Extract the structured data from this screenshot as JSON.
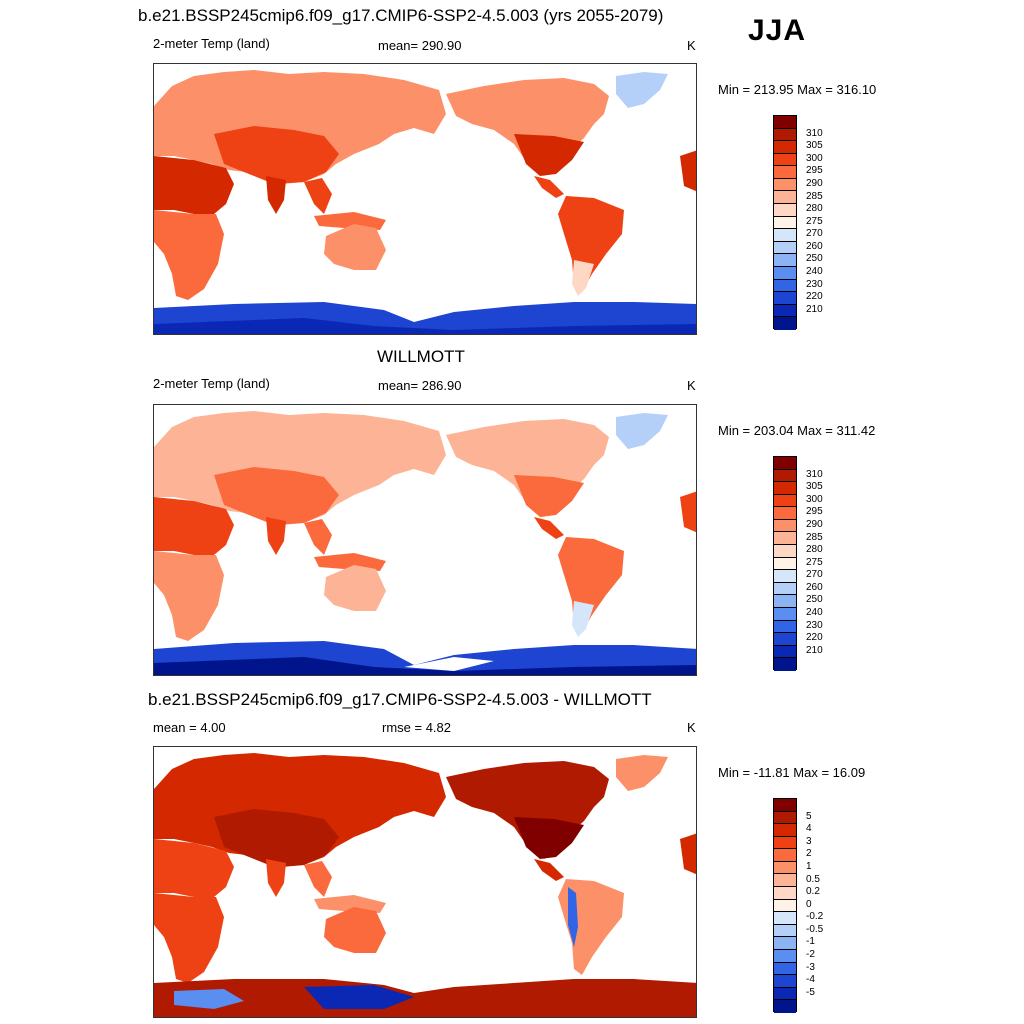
{
  "season": "JJA",
  "panels": [
    {
      "title": "b.e21.BSSP245cmip6.f09_g17.CMIP6-SSP2-4.5.003 (yrs 2055-2079)",
      "left_label": "2-meter Temp (land)",
      "center_label": "mean= 290.90",
      "units": "K",
      "minmax": "Min = 213.95 Max = 316.10",
      "colorbar": {
        "colors": [
          "#800000",
          "#b01a00",
          "#d42800",
          "#ee4214",
          "#fa6a3c",
          "#fc9068",
          "#fdb496",
          "#fed8c4",
          "#fff2e6",
          "#d6e6fa",
          "#b4d0f8",
          "#8cb4f4",
          "#5a8ef0",
          "#3264e6",
          "#1e44d2",
          "#0a28b4",
          "#00148c"
        ],
        "ticks": [
          "310",
          "305",
          "300",
          "295",
          "290",
          "285",
          "280",
          "275",
          "270",
          "260",
          "250",
          "240",
          "230",
          "220",
          "210"
        ]
      }
    },
    {
      "title": "WILLMOTT",
      "left_label": "2-meter Temp (land)",
      "center_label": "mean= 286.90",
      "units": "K",
      "minmax": "Min = 203.04 Max = 311.42",
      "colorbar": {
        "colors": [
          "#800000",
          "#b01a00",
          "#d42800",
          "#ee4214",
          "#fa6a3c",
          "#fc9068",
          "#fdb496",
          "#fed8c4",
          "#fff2e6",
          "#d6e6fa",
          "#b4d0f8",
          "#8cb4f4",
          "#5a8ef0",
          "#3264e6",
          "#1e44d2",
          "#0a28b4",
          "#00148c"
        ],
        "ticks": [
          "310",
          "305",
          "300",
          "295",
          "290",
          "285",
          "280",
          "275",
          "270",
          "260",
          "250",
          "240",
          "230",
          "220",
          "210"
        ]
      }
    },
    {
      "title": "b.e21.BSSP245cmip6.f09_g17.CMIP6-SSP2-4.5.003 - WILLMOTT",
      "left_label": "mean =   4.00",
      "center_label": "rmse =   4.82",
      "units": "K",
      "minmax": "Min = -11.81 Max =  16.09",
      "colorbar": {
        "colors": [
          "#800000",
          "#b01a00",
          "#d42800",
          "#ee4214",
          "#fa6a3c",
          "#fc9068",
          "#fdb496",
          "#fed8c4",
          "#fff2e6",
          "#d6e6fa",
          "#b4d0f8",
          "#8cb4f4",
          "#5a8ef0",
          "#3264e6",
          "#1e44d2",
          "#0a28b4",
          "#00148c"
        ],
        "ticks": [
          "5",
          "4",
          "3",
          "2",
          "1",
          "0.5",
          "0.2",
          "0",
          "-0.2",
          "-0.5",
          "-1",
          "-2",
          "-3",
          "-4",
          "-5"
        ]
      }
    }
  ]
}
